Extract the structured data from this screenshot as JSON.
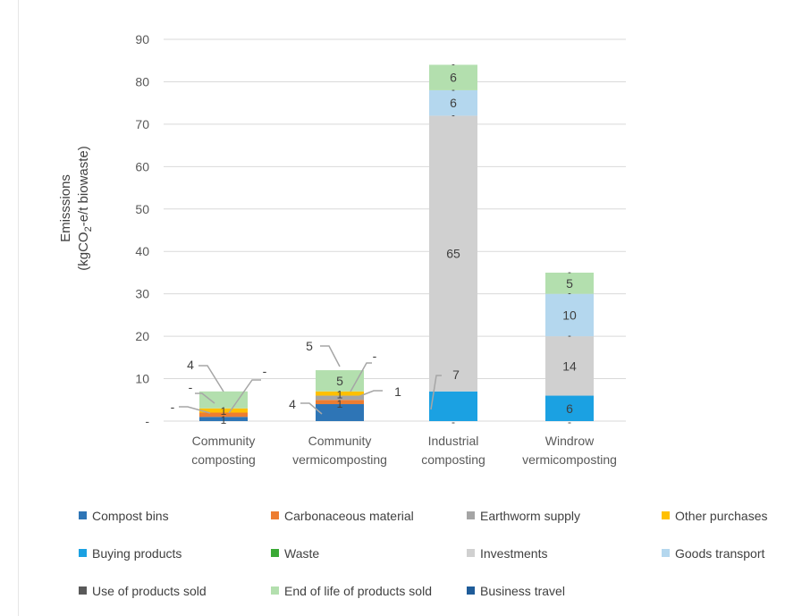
{
  "chart_data": {
    "type": "bar",
    "stacked": true,
    "ylabel": "Emisssions",
    "ylabel_unit_prefix": "(kgCO",
    "ylabel_unit_sub": "2",
    "ylabel_unit_suffix": "-e/t  biowaste)",
    "ylim": [
      0,
      90
    ],
    "yticks": [
      "-",
      "10",
      "20",
      "30",
      "40",
      "50",
      "60",
      "70",
      "80",
      "90"
    ],
    "ytick_values": [
      0,
      10,
      20,
      30,
      40,
      50,
      60,
      70,
      80,
      90
    ],
    "grid": true,
    "legend_position": "bottom",
    "categories": [
      [
        "Community",
        "composting"
      ],
      [
        "Community",
        "vermicomposting"
      ],
      [
        "Industrial",
        "composting"
      ],
      [
        "Windrow",
        "vermicomposting"
      ]
    ],
    "series": [
      {
        "name": "Compost bins",
        "color": "#2e75b6",
        "values": [
          1,
          4,
          0,
          0
        ],
        "labels": [
          "1",
          "4",
          "-",
          "-"
        ]
      },
      {
        "name": "Carbonaceous material",
        "color": "#ed7d31",
        "values": [
          1,
          1,
          0,
          0
        ],
        "labels": [
          "",
          "1",
          "",
          ""
        ]
      },
      {
        "name": "Earthworm supply",
        "color": "#a5a5a5",
        "values": [
          0,
          1,
          0,
          0
        ],
        "labels": [
          "",
          "1",
          "",
          ""
        ]
      },
      {
        "name": "Other purchases",
        "color": "#ffc000",
        "values": [
          1,
          1,
          0,
          0
        ],
        "labels": [
          "1",
          "",
          "",
          ""
        ]
      },
      {
        "name": "Buying products",
        "color": "#1ba1e2",
        "values": [
          0,
          0,
          7,
          6
        ],
        "labels": [
          "",
          "",
          "7",
          "6"
        ]
      },
      {
        "name": "Waste",
        "color": "#3aa935",
        "values": [
          0,
          0,
          0,
          0
        ],
        "labels": [
          "",
          "",
          "",
          ""
        ]
      },
      {
        "name": "Investments",
        "color": "#d0d0d0",
        "values": [
          0,
          0,
          65,
          14
        ],
        "labels": [
          "",
          "",
          "65",
          "14"
        ]
      },
      {
        "name": "Goods transport",
        "color": "#b4d7ee",
        "values": [
          0,
          0,
          6,
          10
        ],
        "labels": [
          "",
          "",
          "6",
          "10"
        ]
      },
      {
        "name": "Use of products sold",
        "color": "#595959",
        "values": [
          0,
          0,
          0,
          0
        ],
        "labels": [
          "",
          "",
          "",
          ""
        ]
      },
      {
        "name": "End of life of products sold",
        "color": "#b3dfae",
        "values": [
          4,
          5,
          6,
          5
        ],
        "labels": [
          "4",
          "5",
          "6",
          "5"
        ]
      },
      {
        "name": "Business travel",
        "color": "#1f5c99",
        "values": [
          0,
          0,
          0,
          0
        ],
        "labels": [
          "",
          "",
          "",
          ""
        ]
      }
    ],
    "annotations": [
      {
        "category": 0,
        "text": "-",
        "side": "left"
      },
      {
        "category": 0,
        "text": "-",
        "side": "left"
      },
      {
        "category": 0,
        "text": "4",
        "side": "left"
      },
      {
        "category": 0,
        "text": "-",
        "side": "right"
      },
      {
        "category": 1,
        "text": "4",
        "side": "left"
      },
      {
        "category": 1,
        "text": "5",
        "side": "left"
      },
      {
        "category": 1,
        "text": "-",
        "side": "right"
      },
      {
        "category": 1,
        "text": "1",
        "side": "right"
      },
      {
        "category": 2,
        "text": "7",
        "side": "right"
      }
    ]
  }
}
